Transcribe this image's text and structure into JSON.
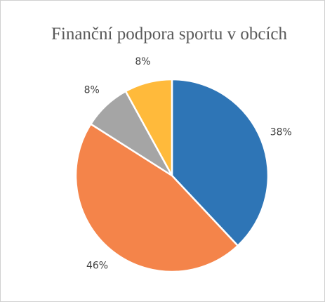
{
  "chart_data": {
    "type": "pie",
    "title": "Finanční podpora sportu v obcích",
    "values": [
      38,
      46,
      8,
      8
    ],
    "value_labels": [
      "38%",
      "46%",
      "8%",
      "8%"
    ],
    "colors": [
      "#2e75b6",
      "#f4844a",
      "#a5a5a5",
      "#ffba3b"
    ]
  }
}
